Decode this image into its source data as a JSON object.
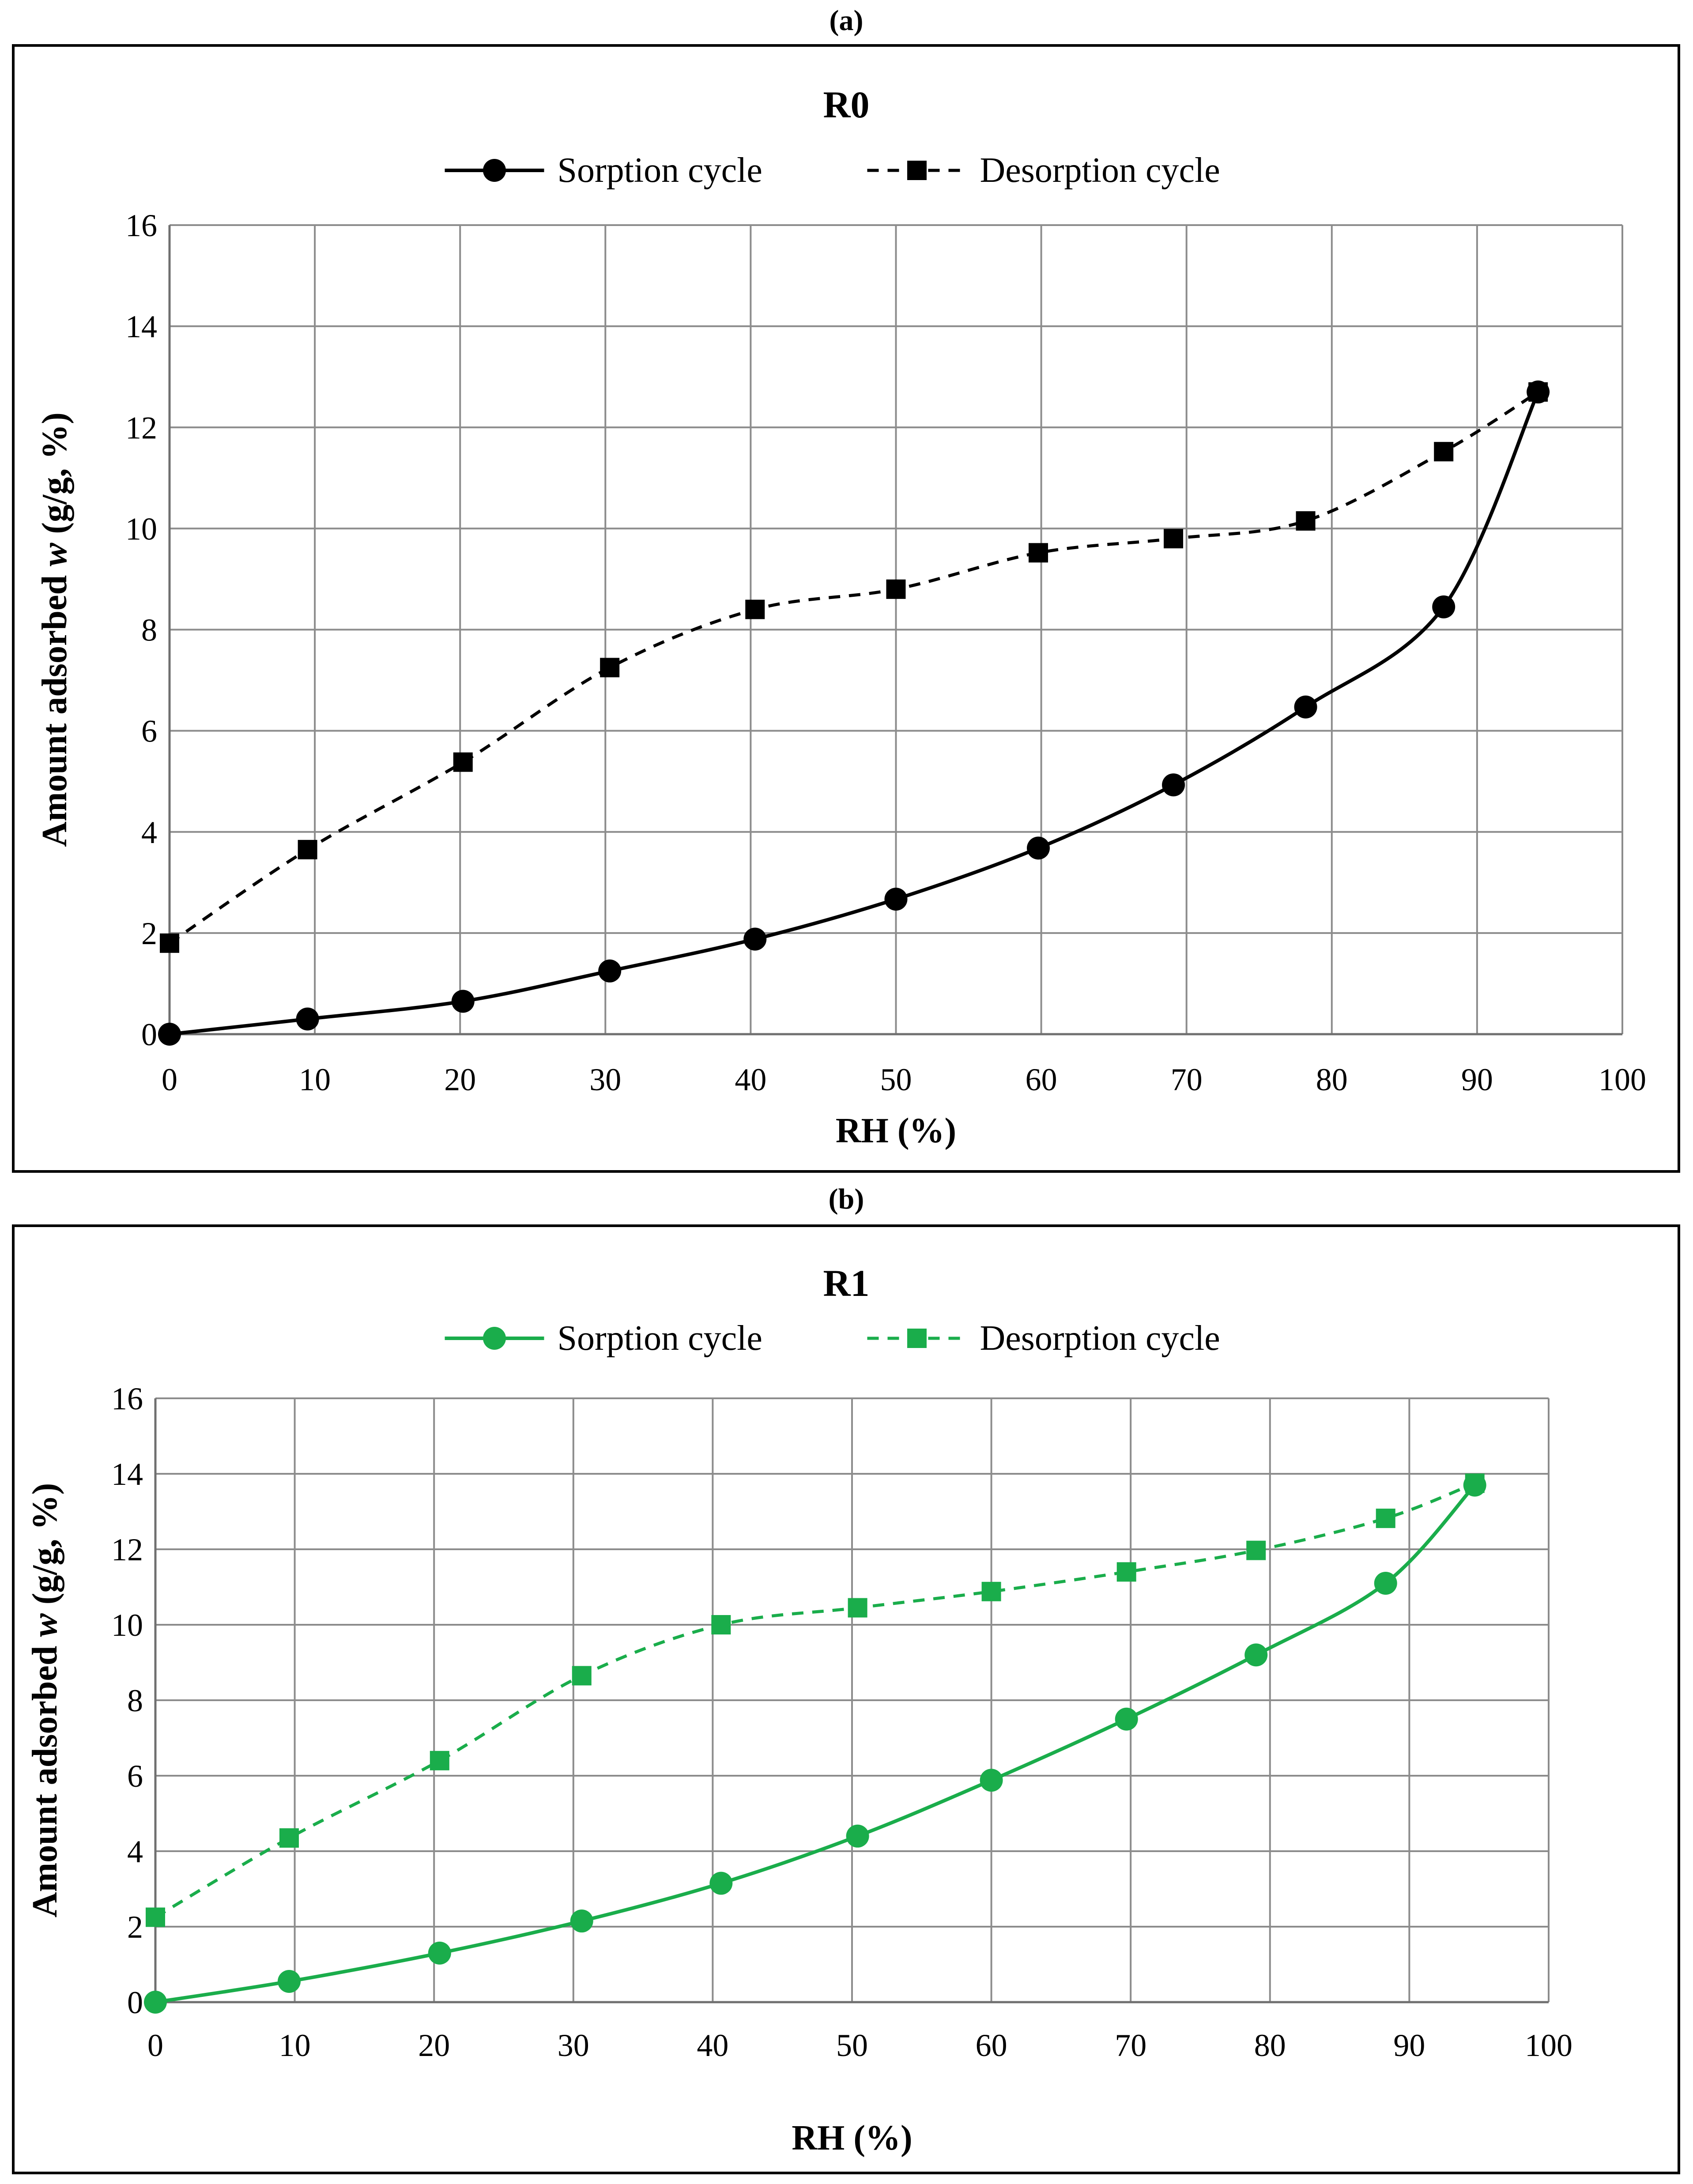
{
  "chart_data": [
    {
      "panel_label": "(a)",
      "type": "line",
      "title": "R0",
      "xlabel": "RH (%)",
      "ylabel_prefix": "Amount adsorbed ",
      "ylabel_var": "w",
      "ylabel_suffix": " (g/g, %)",
      "xlim": [
        0,
        100
      ],
      "ylim": [
        0,
        16
      ],
      "xticks": [
        0,
        10,
        20,
        30,
        40,
        50,
        60,
        70,
        80,
        90,
        100
      ],
      "yticks": [
        0,
        2,
        4,
        6,
        8,
        10,
        12,
        14,
        16
      ],
      "grid": true,
      "legend_position": "top-center",
      "color": "#000000",
      "series": [
        {
          "name": "Sorption cycle",
          "marker": "circle",
          "line_style": "solid",
          "x": [
            0,
            9.5,
            20.2,
            30.3,
            40.3,
            50.0,
            59.8,
            69.1,
            78.2,
            87.7,
            94.2
          ],
          "y": [
            0,
            0.3,
            0.65,
            1.25,
            1.88,
            2.67,
            3.68,
            4.93,
            6.47,
            8.45,
            12.7
          ]
        },
        {
          "name": "Desorption cycle",
          "marker": "square",
          "line_style": "dashed",
          "x": [
            0,
            9.5,
            20.2,
            30.3,
            40.3,
            50.0,
            59.8,
            69.1,
            78.2,
            87.7,
            94.2
          ],
          "y": [
            1.8,
            3.65,
            5.38,
            7.25,
            8.4,
            8.8,
            9.52,
            9.8,
            10.15,
            11.52,
            12.7
          ]
        }
      ]
    },
    {
      "panel_label": "(b)",
      "type": "line",
      "title": "R1",
      "xlabel": "RH (%)",
      "ylabel_prefix": "Amount adsorbed ",
      "ylabel_var": "w",
      "ylabel_suffix": " (g/g, %)",
      "xlim": [
        0,
        100
      ],
      "ylim": [
        0,
        16
      ],
      "xticks": [
        0,
        10,
        20,
        30,
        40,
        50,
        60,
        70,
        80,
        90,
        100
      ],
      "yticks": [
        0,
        2,
        4,
        6,
        8,
        10,
        12,
        14,
        16
      ],
      "grid": true,
      "legend_position": "top-center",
      "color": "#1aad4b",
      "series": [
        {
          "name": "Sorption cycle",
          "marker": "circle",
          "line_style": "solid",
          "x": [
            0,
            9.6,
            20.4,
            30.6,
            40.6,
            50.4,
            60.0,
            69.7,
            79.0,
            88.3,
            94.7
          ],
          "y": [
            0,
            0.55,
            1.3,
            2.15,
            3.15,
            4.4,
            5.88,
            7.5,
            9.2,
            11.1,
            13.7
          ]
        },
        {
          "name": "Desorption cycle",
          "marker": "square",
          "line_style": "dashed",
          "x": [
            0,
            9.6,
            20.4,
            30.6,
            40.6,
            50.4,
            60.0,
            69.7,
            79.0,
            88.3,
            94.7
          ],
          "y": [
            2.25,
            4.35,
            6.4,
            8.65,
            10.0,
            10.45,
            10.88,
            11.4,
            11.97,
            12.82,
            13.75
          ]
        }
      ]
    }
  ]
}
